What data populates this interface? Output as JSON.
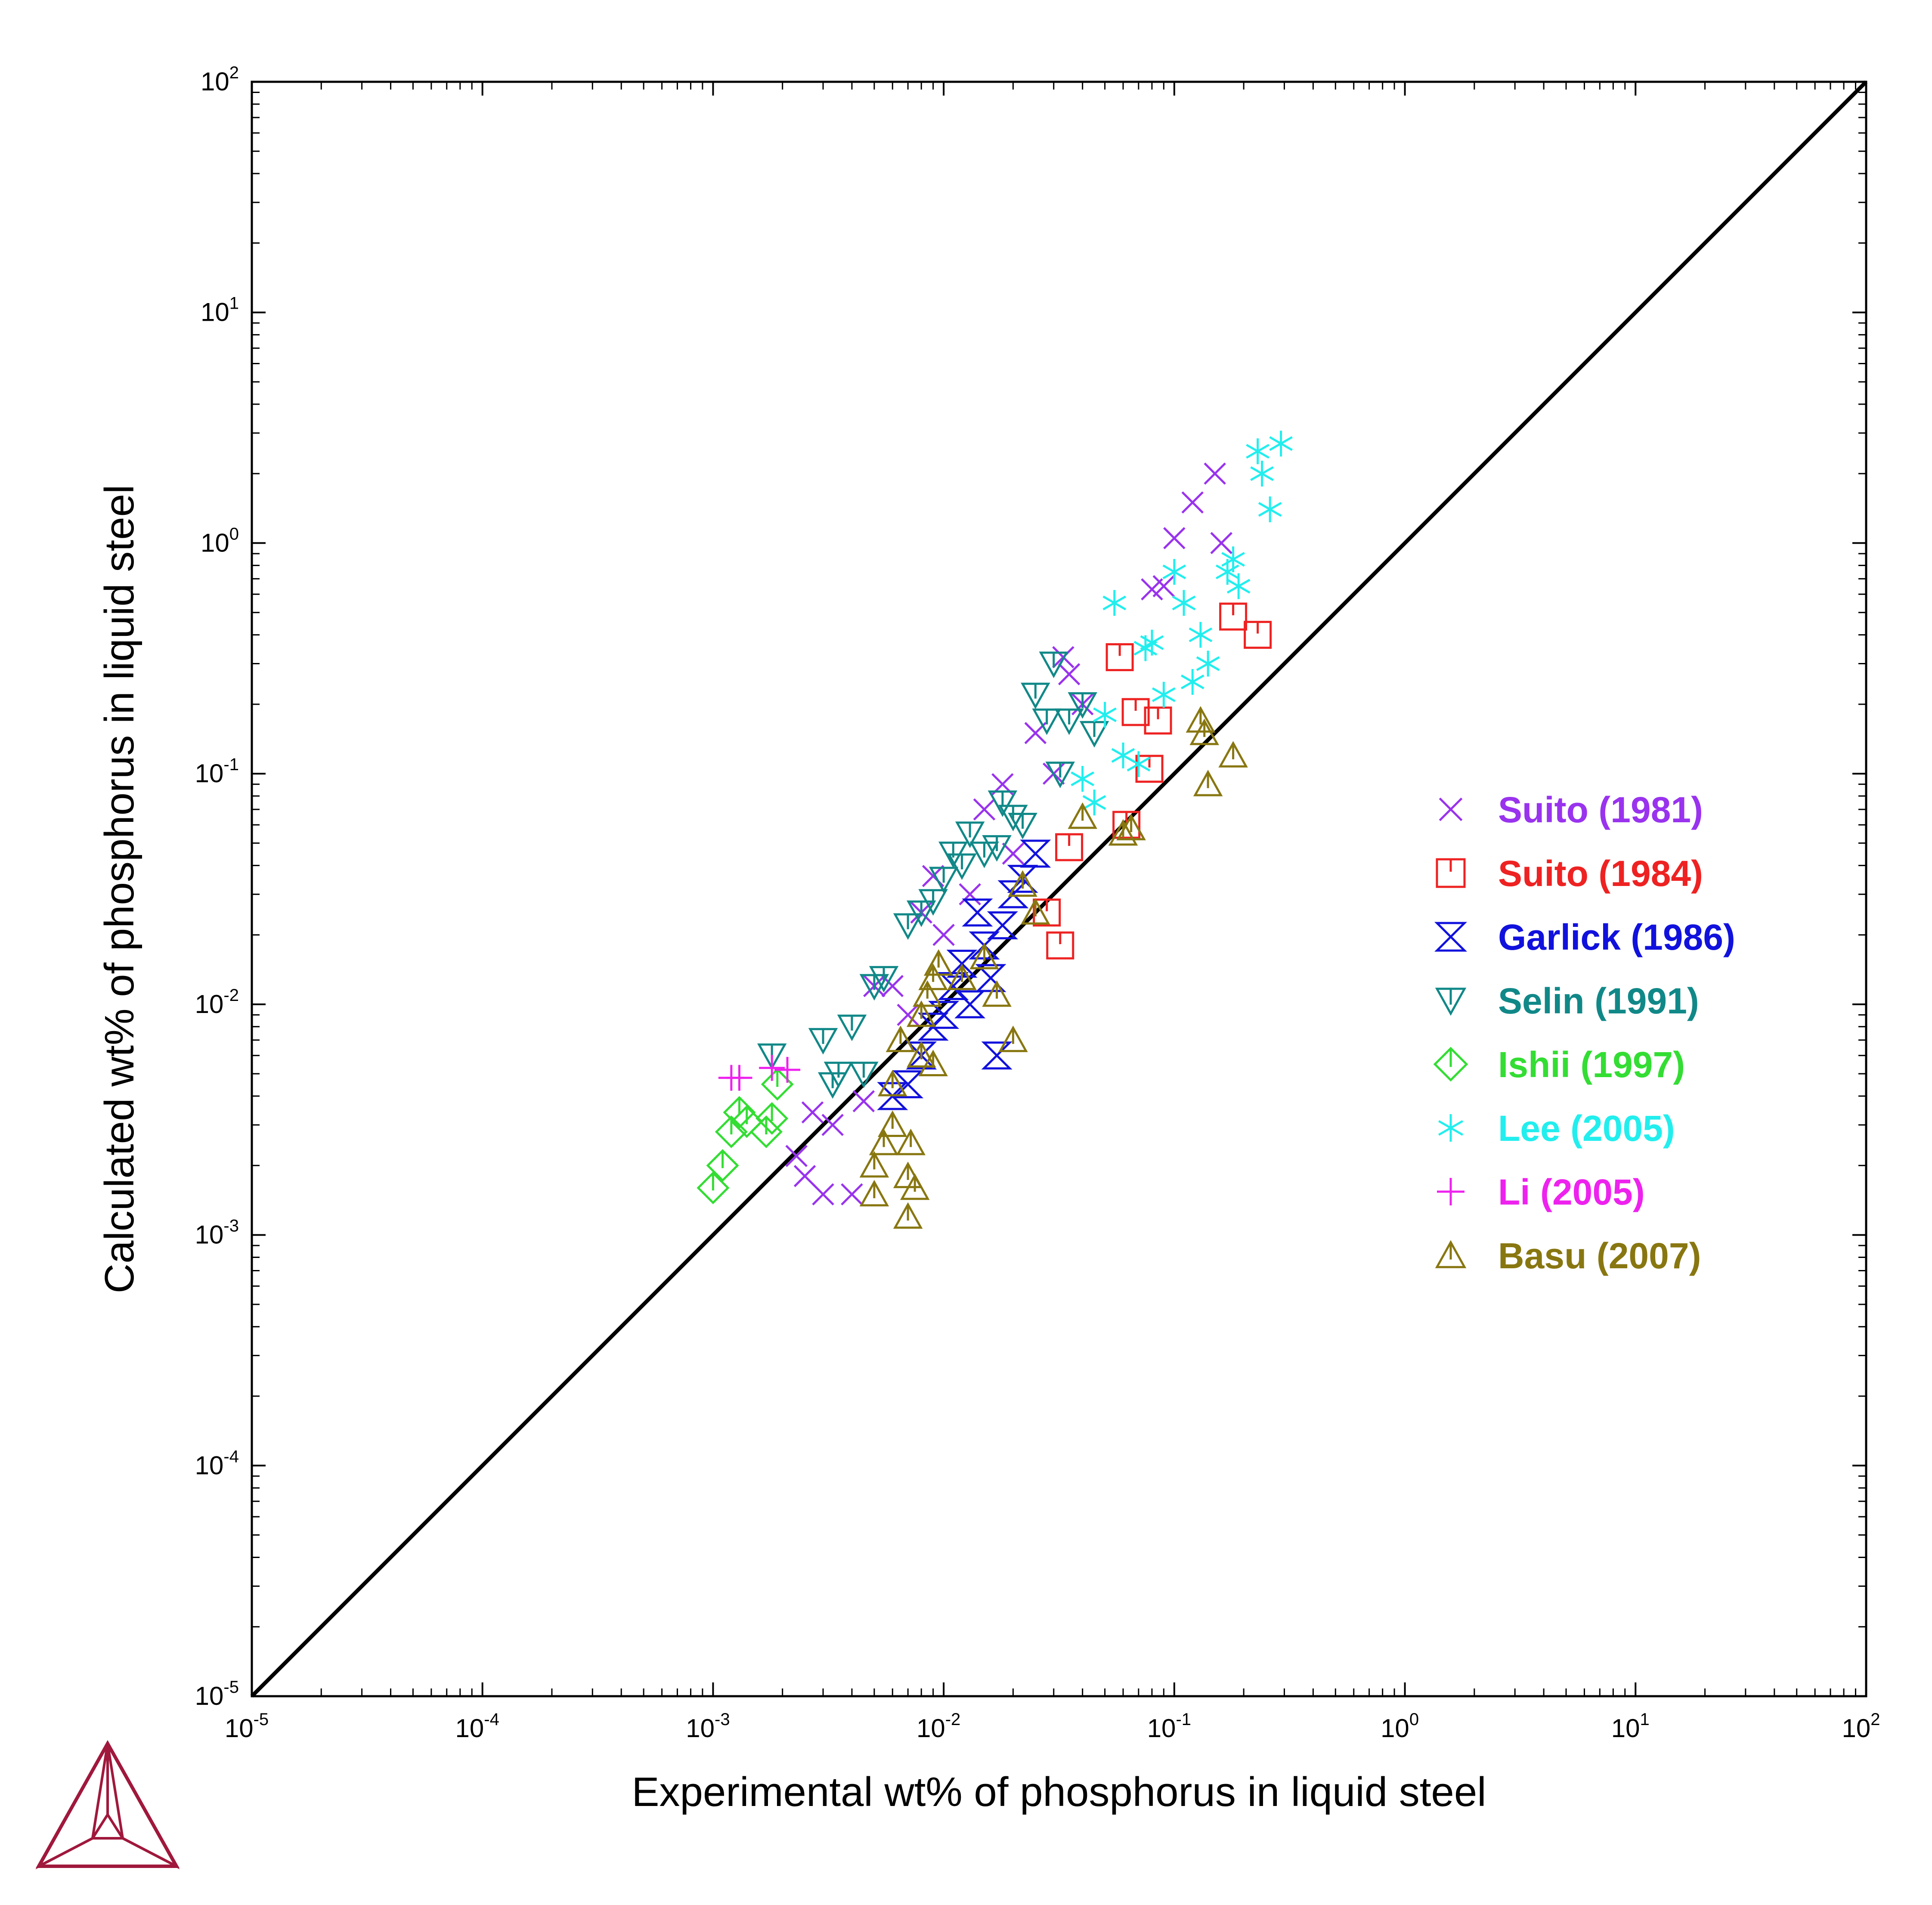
{
  "chart_data": {
    "type": "scatter",
    "xlabel": "Experimental wt% of phosphorus in liquid steel",
    "ylabel": "Calculated wt% of phosphorus in liquid steel",
    "xscale": "log",
    "yscale": "log",
    "xlim": [
      1e-05,
      100
    ],
    "ylim": [
      1e-05,
      100
    ],
    "tick_exponents": [
      "-5",
      "-4",
      "-3",
      "-2",
      "-1",
      "0",
      "1",
      "2"
    ],
    "tick_base": "10",
    "grid": false,
    "legend_position": "right",
    "reference_line": {
      "x": [
        1e-05,
        100
      ],
      "y": [
        1e-05,
        100
      ],
      "color": "#000000"
    },
    "series": [
      {
        "name": "Suito (1981)",
        "color": "#9933ee",
        "marker": "x",
        "x": [
          0.0023,
          0.0025,
          0.0027,
          0.003,
          0.0033,
          0.004,
          0.0045,
          0.005,
          0.006,
          0.007,
          0.008,
          0.009,
          0.01,
          0.013,
          0.015,
          0.018,
          0.02,
          0.025,
          0.03,
          0.033,
          0.035,
          0.04,
          0.08,
          0.09,
          0.1,
          0.12,
          0.15,
          0.16
        ],
        "y": [
          0.0022,
          0.0018,
          0.0034,
          0.0015,
          0.003,
          0.0015,
          0.0038,
          0.012,
          0.012,
          0.009,
          0.025,
          0.036,
          0.02,
          0.03,
          0.07,
          0.09,
          0.045,
          0.15,
          0.1,
          0.32,
          0.27,
          0.2,
          0.63,
          0.65,
          1.05,
          1.5,
          2.0,
          1.0
        ]
      },
      {
        "name": "Suito (1984)",
        "color": "#ee2222",
        "marker": "square",
        "x": [
          0.028,
          0.032,
          0.035,
          0.058,
          0.062,
          0.068,
          0.078,
          0.085,
          0.18,
          0.23
        ],
        "y": [
          0.025,
          0.018,
          0.048,
          0.32,
          0.06,
          0.185,
          0.105,
          0.17,
          0.48,
          0.4
        ]
      },
      {
        "name": "Garlick (1986)",
        "color": "#1111dd",
        "marker": "hourglass",
        "x": [
          0.006,
          0.007,
          0.008,
          0.009,
          0.01,
          0.011,
          0.012,
          0.013,
          0.014,
          0.015,
          0.016,
          0.017,
          0.018,
          0.02,
          0.022,
          0.025
        ],
        "y": [
          0.004,
          0.0045,
          0.006,
          0.008,
          0.009,
          0.012,
          0.015,
          0.01,
          0.025,
          0.018,
          0.013,
          0.006,
          0.022,
          0.03,
          0.035,
          0.045
        ]
      },
      {
        "name": "Selin (1991)",
        "color": "#118888",
        "marker": "triangle-down",
        "x": [
          0.0018,
          0.003,
          0.0033,
          0.0035,
          0.004,
          0.0045,
          0.005,
          0.0055,
          0.007,
          0.008,
          0.009,
          0.01,
          0.011,
          0.012,
          0.013,
          0.015,
          0.017,
          0.018,
          0.02,
          0.022,
          0.025,
          0.028,
          0.03,
          0.032,
          0.035,
          0.04,
          0.045
        ],
        "y": [
          0.006,
          0.007,
          0.0045,
          0.005,
          0.008,
          0.005,
          0.012,
          0.013,
          0.022,
          0.025,
          0.028,
          0.035,
          0.045,
          0.04,
          0.055,
          0.045,
          0.048,
          0.075,
          0.065,
          0.06,
          0.22,
          0.17,
          0.3,
          0.1,
          0.17,
          0.2,
          0.15
        ]
      },
      {
        "name": "Ishii (1997)",
        "color": "#33dd33",
        "marker": "diamond",
        "x": [
          0.001,
          0.0011,
          0.0012,
          0.0013,
          0.0014,
          0.0017,
          0.0018,
          0.0019
        ],
        "y": [
          0.0016,
          0.002,
          0.0028,
          0.0034,
          0.0031,
          0.0028,
          0.0032,
          0.0045
        ]
      },
      {
        "name": "Lee (2005)",
        "color": "#22eeee",
        "marker": "asterisk",
        "x": [
          0.04,
          0.045,
          0.05,
          0.055,
          0.06,
          0.07,
          0.075,
          0.08,
          0.09,
          0.1,
          0.11,
          0.12,
          0.13,
          0.14,
          0.17,
          0.18,
          0.19,
          0.23,
          0.24,
          0.26,
          0.29
        ],
        "y": [
          0.095,
          0.075,
          0.18,
          0.55,
          0.12,
          0.11,
          0.35,
          0.37,
          0.22,
          0.75,
          0.55,
          0.25,
          0.4,
          0.3,
          0.75,
          0.85,
          0.65,
          2.5,
          2.0,
          1.4,
          2.7
        ]
      },
      {
        "name": "Li (2005)",
        "color": "#ee22ee",
        "marker": "plus",
        "x": [
          0.0012,
          0.0013,
          0.0018,
          0.0021
        ],
        "y": [
          0.0048,
          0.0048,
          0.0053,
          0.0052
        ]
      },
      {
        "name": "Basu (2007)",
        "color": "#887711",
        "marker": "triangle-up",
        "x": [
          0.005,
          0.005,
          0.0055,
          0.006,
          0.006,
          0.0065,
          0.007,
          0.007,
          0.0072,
          0.0075,
          0.008,
          0.008,
          0.0085,
          0.009,
          0.009,
          0.0095,
          0.012,
          0.015,
          0.017,
          0.02,
          0.022,
          0.025,
          0.04,
          0.06,
          0.065,
          0.13,
          0.135,
          0.14,
          0.18
        ],
        "y": [
          0.0015,
          0.002,
          0.0025,
          0.003,
          0.0045,
          0.007,
          0.0012,
          0.0018,
          0.0025,
          0.0016,
          0.006,
          0.009,
          0.011,
          0.013,
          0.0055,
          0.015,
          0.013,
          0.016,
          0.011,
          0.007,
          0.033,
          0.025,
          0.065,
          0.055,
          0.058,
          0.17,
          0.15,
          0.09,
          0.12
        ]
      }
    ]
  }
}
